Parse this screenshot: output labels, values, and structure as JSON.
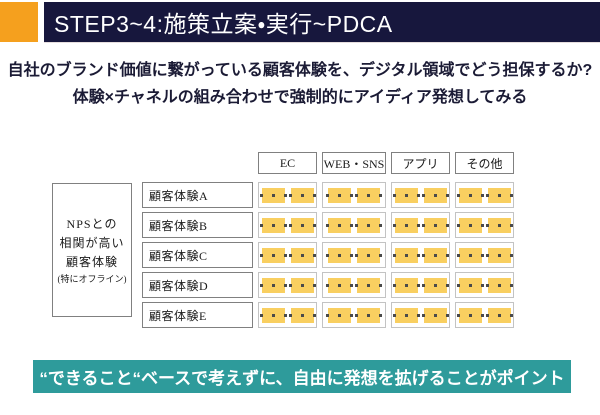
{
  "slide": {
    "title": "STEP3~4:施策立案・実行~PDCA",
    "intro_line1": "自社のブランド価値に繋がっている顧客体験を、デジタル領域でどう担保するか?",
    "intro_line2": "体験×チャネルの組み合わせで強制的にアイディア発想してみる",
    "footer_message": "“できること“ベースで考えずに、自由に発想を拡げることがポイント"
  },
  "matrix": {
    "column_headers": [
      "EC",
      "WEB・SNS",
      "アプリ",
      "その他"
    ],
    "row_labels": [
      "顧客体験A",
      "顧客体験B",
      "顧客体験C",
      "顧客体験D",
      "顧客体験E"
    ],
    "side_label_lines": [
      "NPSとの",
      "相関が高い",
      "顧客体験"
    ],
    "side_label_note": "(特にオフライン)",
    "sticky_notes_per_cell": 2
  },
  "colors": {
    "accent_orange": "#F5A01E",
    "header_navy": "#17173D",
    "footer_teal": "#2E9B9B",
    "note_yellow": "#F9CF60"
  }
}
